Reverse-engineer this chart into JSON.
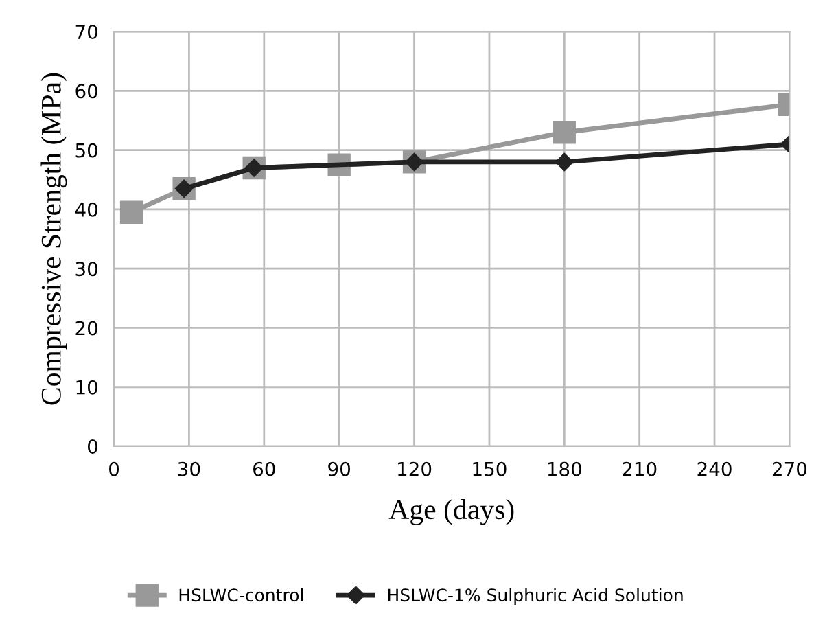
{
  "chart_data": {
    "type": "line",
    "xlabel": "Age (days)",
    "ylabel": "Compressive Strength (MPa)",
    "xlim": [
      0,
      270
    ],
    "xticks": [
      0,
      30,
      60,
      90,
      120,
      150,
      180,
      210,
      240,
      270
    ],
    "ylim": [
      0,
      70
    ],
    "yticks": [
      0,
      10,
      20,
      30,
      40,
      50,
      60,
      70
    ],
    "grid": true,
    "legend": "bottom",
    "line_style": "solid",
    "series": [
      {
        "name": "HSLWC-control",
        "color": "#999999",
        "marker": "square",
        "x": [
          7,
          28,
          56,
          90,
          120,
          180,
          270
        ],
        "values": [
          39.5,
          43.5,
          47,
          47.5,
          48,
          53,
          57.7
        ]
      },
      {
        "name": "HSLWC-1% Sulphuric Acid Solution",
        "color": "#222222",
        "marker": "diamond",
        "x": [
          28,
          56,
          120,
          180,
          270
        ],
        "values": [
          43.5,
          47,
          48,
          48,
          51
        ]
      }
    ]
  }
}
